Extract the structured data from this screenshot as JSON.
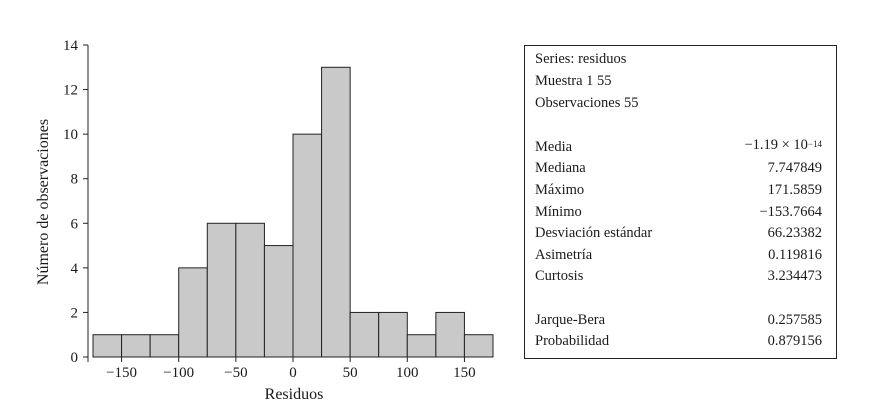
{
  "chart_data": {
    "type": "bar",
    "subtype": "histogram",
    "bin_width": 25,
    "bins": [
      {
        "x0": -175,
        "x1": -150,
        "count": 1
      },
      {
        "x0": -150,
        "x1": -125,
        "count": 1
      },
      {
        "x0": -125,
        "x1": -100,
        "count": 1
      },
      {
        "x0": -100,
        "x1": -75,
        "count": 4
      },
      {
        "x0": -75,
        "x1": -50,
        "count": 6
      },
      {
        "x0": -50,
        "x1": -25,
        "count": 6
      },
      {
        "x0": -25,
        "x1": 0,
        "count": 5
      },
      {
        "x0": 0,
        "x1": 25,
        "count": 10
      },
      {
        "x0": 25,
        "x1": 50,
        "count": 13
      },
      {
        "x0": 50,
        "x1": 75,
        "count": 2
      },
      {
        "x0": 75,
        "x1": 100,
        "count": 2
      },
      {
        "x0": 100,
        "x1": 125,
        "count": 1
      },
      {
        "x0": 125,
        "x1": 150,
        "count": 2
      },
      {
        "x0": 150,
        "x1": 175,
        "count": 1
      }
    ],
    "xlabel": "Residuos",
    "ylabel": "Número de observaciones",
    "xlim": [
      -175,
      175
    ],
    "ylim": [
      0,
      14
    ],
    "xticks": [
      -150,
      -100,
      -50,
      0,
      50,
      100,
      150
    ],
    "xtick_labels": [
      "−150",
      "−100",
      "−50",
      "0",
      "50",
      "100",
      "150"
    ],
    "yticks": [
      0,
      2,
      4,
      6,
      8,
      10,
      12,
      14
    ],
    "grid": false,
    "bar_fill": "#c9c9c9",
    "bar_stroke": "#222222"
  },
  "stats": {
    "series_label": "Series: residuos",
    "sample_label": "Muestra 1 55",
    "observations_label": "Observaciones 55",
    "rows": [
      {
        "label": "Media",
        "value_base": "−1.19 × 10",
        "value_exp": "−14"
      },
      {
        "label": "Mediana",
        "value": "7.747849"
      },
      {
        "label": "Máximo",
        "value": "171.5859"
      },
      {
        "label": "Mínimo",
        "value": "−153.7664"
      },
      {
        "label": "Desviación estándar",
        "value": "66.23382"
      },
      {
        "label": "Asimetría",
        "value": "0.119816"
      },
      {
        "label": "Curtosis",
        "value": "3.234473"
      },
      {
        "label": "Jarque-Bera",
        "value": "0.257585"
      },
      {
        "label": "Probabilidad",
        "value": "0.879156"
      }
    ]
  }
}
